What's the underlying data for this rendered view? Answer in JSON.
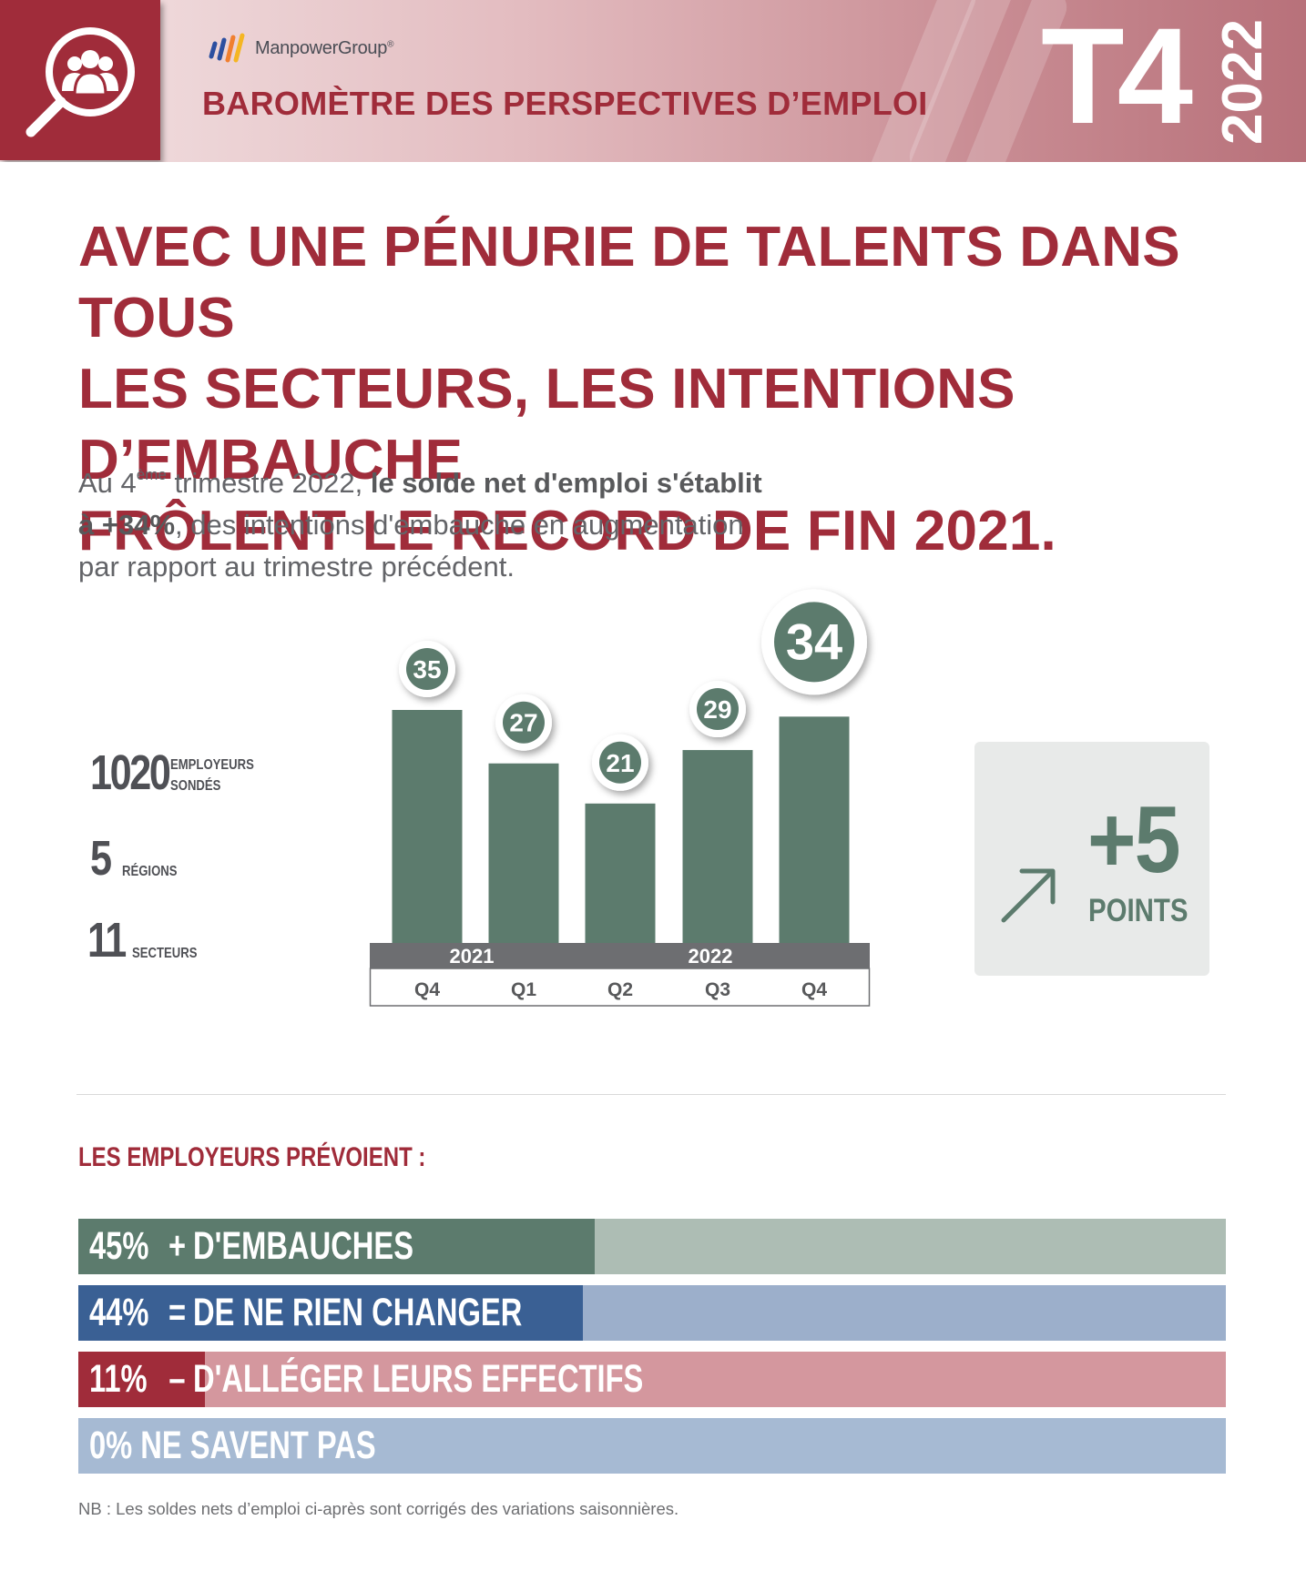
{
  "header": {
    "brand": "ManpowerGroup",
    "brand_mark": "®",
    "title": "BAROMÈTRE DES PERSPECTIVES D’EMPLOI",
    "quarter": "T4",
    "year": "2022",
    "logo_icon": "magnifier-people-icon"
  },
  "headline": [
    "AVEC UNE PÉNURIE DE TALENTS DANS TOUS",
    "LES SECTEURS, LES INTENTIONS D’EMBAUCHE",
    "FRÔLENT LE RECORD DE FIN 2021."
  ],
  "intro": {
    "p1": "Au 4",
    "sup": "ème",
    "p2": " trimestre 2022, ",
    "bold1": "le solde net d'emploi s'établit",
    "bold2": "à +34%",
    "p3": ", des intentions d'embauche en augmentation",
    "p4": "par rapport au trimestre précédent."
  },
  "stats": [
    {
      "value": "1020",
      "label1": "EMPLOYEURS",
      "label2": "SONDÉS"
    },
    {
      "value": "5",
      "label1": "RÉGIONS",
      "label2": ""
    },
    {
      "value": "11",
      "label1": "SECTEURS",
      "label2": ""
    }
  ],
  "chart_data": [
    {
      "type": "bar",
      "x": [
        "Q4",
        "Q1",
        "Q2",
        "Q3",
        "Q4"
      ],
      "groups": [
        {
          "label": "2021",
          "count": 1
        },
        {
          "label": "2022",
          "count": 4
        }
      ],
      "values": [
        35,
        27,
        21,
        29,
        34
      ],
      "ylim": [
        0,
        35
      ],
      "bar_color": "#5c7b6d",
      "highlight_index": 4
    },
    {
      "type": "bar",
      "title": "LES EMPLOYEURS PRÉVOIENT :",
      "categories": [
        "+ D'EMBAUCHES",
        "= DE NE RIEN CHANGER",
        "– D'ALLÉGER LEURS EFFECTIFS",
        "NE SAVENT PAS"
      ],
      "signs": [
        "+",
        "=",
        "–",
        ""
      ],
      "labels": [
        "D'EMBAUCHES",
        "DE NE RIEN CHANGER",
        "D'ALLÉGER LEURS EFFECTIFS",
        "NE SAVENT PAS"
      ],
      "values": [
        45,
        44,
        11,
        0
      ],
      "unit": "%",
      "colors": [
        "#5c7b6d",
        "#3a6094",
        "#a02c3a",
        "#a6bad3"
      ],
      "track_colors": [
        "#adbdb4",
        "#9cafcb",
        "#d4979e",
        "#a6bad3"
      ]
    }
  ],
  "change": {
    "value": "+5",
    "unit": "POINTS",
    "icon": "arrow-up-right-icon"
  },
  "footnote": "NB : Les soldes nets d’emploi ci-après sont corrigés des variations saisonnières.",
  "colors": {
    "brand_red": "#a02c3a",
    "green": "#5c7b6d",
    "axis_gray": "#6d6e71"
  }
}
